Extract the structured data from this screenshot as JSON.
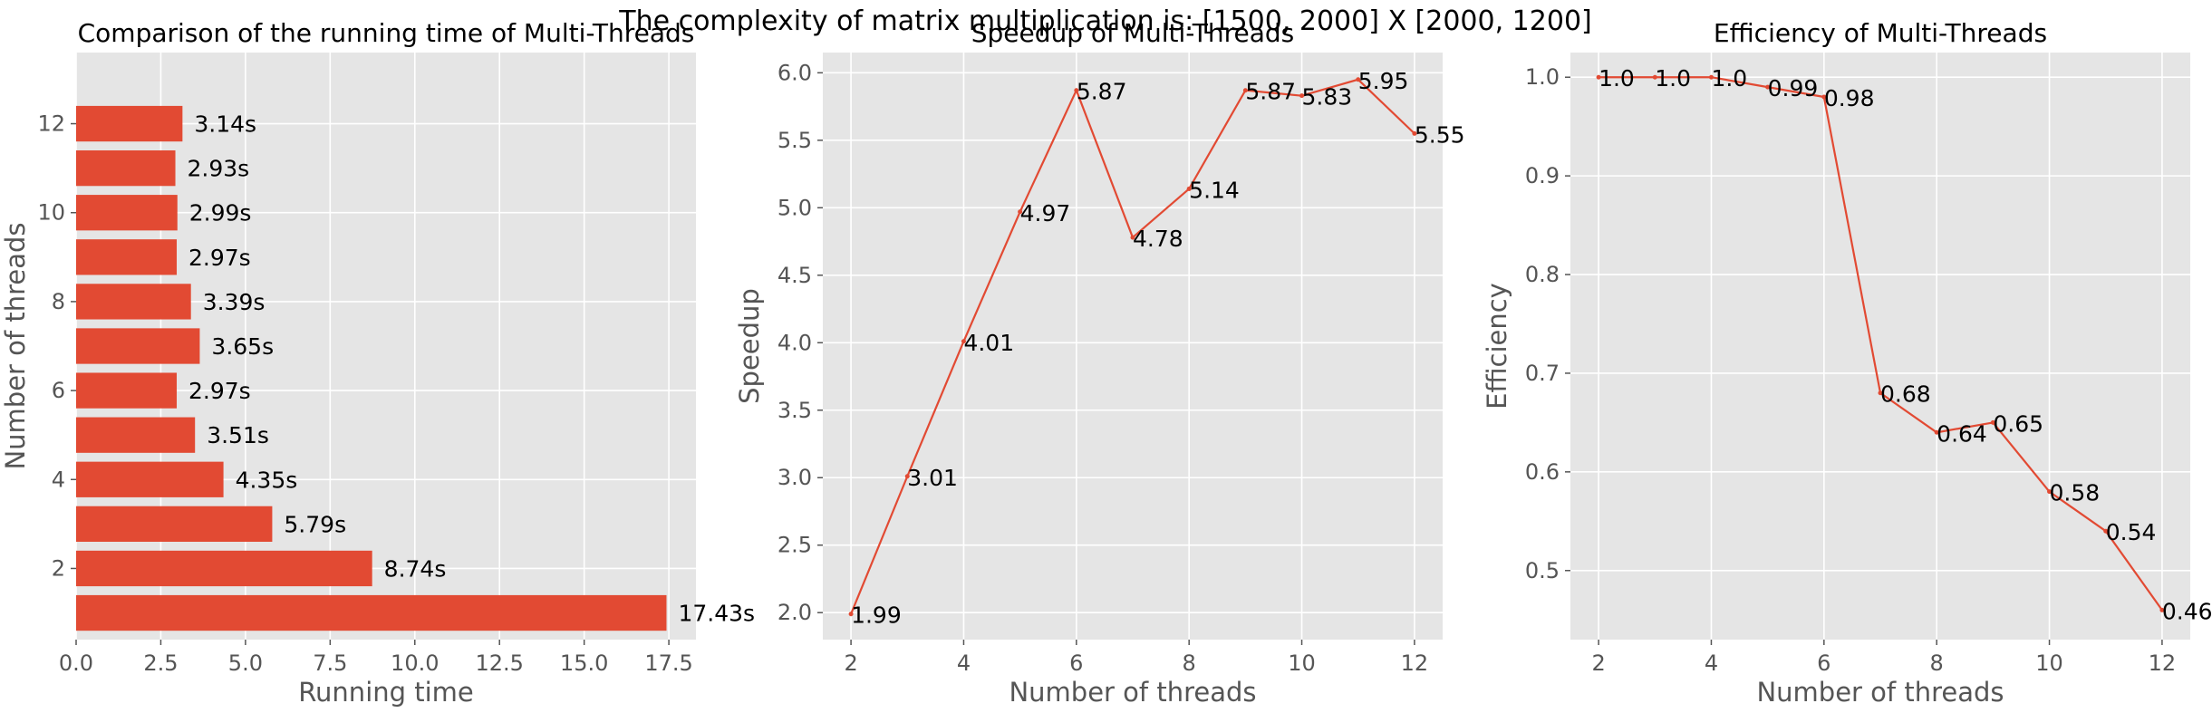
{
  "suptitle": "The complexity of matrix multiplication is: [1500, 2000] X [2000, 1200]",
  "colors": {
    "bar": "#E24A33",
    "line": "#E24A33",
    "panel_bg": "#E5E5E5",
    "grid": "#FFFFFF",
    "tick_text": "#555555",
    "label_text": "#555555",
    "annot_text": "#000000"
  },
  "chart_data": [
    {
      "type": "bar",
      "orientation": "horizontal",
      "title": "Comparison of the running time of Multi-Threads",
      "xlabel": "Running time",
      "ylabel": "Number of threads",
      "categories": [
        1,
        2,
        3,
        4,
        5,
        6,
        7,
        8,
        9,
        10,
        11,
        12
      ],
      "values": [
        17.43,
        8.74,
        5.79,
        4.35,
        3.51,
        2.97,
        3.65,
        3.39,
        2.97,
        2.99,
        2.93,
        3.14
      ],
      "data_labels": [
        "17.43s",
        "8.74s",
        "5.79s",
        "4.35s",
        "3.51s",
        "2.97s",
        "3.65s",
        "3.39s",
        "2.97s",
        "2.99s",
        "2.93s",
        "3.14s"
      ],
      "xlim": [
        0,
        18.3
      ],
      "ylim": [
        0.4,
        13.6
      ],
      "xticks": [
        0,
        2.5,
        5,
        7.5,
        10,
        12.5,
        15,
        17.5
      ],
      "xtick_labels": [
        "0.0",
        "2.5",
        "5.0",
        "7.5",
        "10.0",
        "12.5",
        "15.0",
        "17.5"
      ],
      "yticks": [
        2,
        4,
        6,
        8,
        10,
        12
      ],
      "ytick_labels": [
        "2",
        "4",
        "6",
        "8",
        "10",
        "12"
      ],
      "grid": true
    },
    {
      "type": "line",
      "title": "Speedup of Multi-Threads",
      "xlabel": "Number of threads",
      "ylabel": "Speedup",
      "x": [
        2,
        3,
        4,
        5,
        6,
        7,
        8,
        9,
        10,
        11,
        12
      ],
      "y": [
        1.99,
        3.01,
        4.01,
        4.97,
        5.87,
        4.78,
        5.14,
        5.87,
        5.83,
        5.95,
        5.55
      ],
      "data_labels": [
        "1.99",
        "3.01",
        "4.01",
        "4.97",
        "5.87",
        "4.78",
        "5.14",
        "5.87",
        "5.83",
        "5.95",
        "5.55"
      ],
      "xlim": [
        1.5,
        12.5
      ],
      "ylim": [
        1.8,
        6.15
      ],
      "xticks": [
        2,
        4,
        6,
        8,
        10,
        12
      ],
      "xtick_labels": [
        "2",
        "4",
        "6",
        "8",
        "10",
        "12"
      ],
      "yticks": [
        2.0,
        2.5,
        3.0,
        3.5,
        4.0,
        4.5,
        5.0,
        5.5,
        6.0
      ],
      "ytick_labels": [
        "2.0",
        "2.5",
        "3.0",
        "3.5",
        "4.0",
        "4.5",
        "5.0",
        "5.5",
        "6.0"
      ],
      "grid": true
    },
    {
      "type": "line",
      "title": "Efficiency of Multi-Threads",
      "xlabel": "Number of threads",
      "ylabel": "Efficiency",
      "x": [
        2,
        3,
        4,
        5,
        6,
        7,
        8,
        9,
        10,
        11,
        12
      ],
      "y": [
        1.0,
        1.0,
        1.0,
        0.99,
        0.98,
        0.68,
        0.64,
        0.65,
        0.58,
        0.54,
        0.46
      ],
      "data_labels": [
        "1.0",
        "1.0",
        "1.0",
        "0.99",
        "0.98",
        "0.68",
        "0.64",
        "0.65",
        "0.58",
        "0.54",
        "0.46"
      ],
      "xlim": [
        1.5,
        12.5
      ],
      "ylim": [
        0.43,
        1.025
      ],
      "xticks": [
        2,
        4,
        6,
        8,
        10,
        12
      ],
      "xtick_labels": [
        "2",
        "4",
        "6",
        "8",
        "10",
        "12"
      ],
      "yticks": [
        0.5,
        0.6,
        0.7,
        0.8,
        0.9,
        1.0
      ],
      "ytick_labels": [
        "0.5",
        "0.6",
        "0.7",
        "0.8",
        "0.9",
        "1.0"
      ],
      "grid": true
    }
  ]
}
